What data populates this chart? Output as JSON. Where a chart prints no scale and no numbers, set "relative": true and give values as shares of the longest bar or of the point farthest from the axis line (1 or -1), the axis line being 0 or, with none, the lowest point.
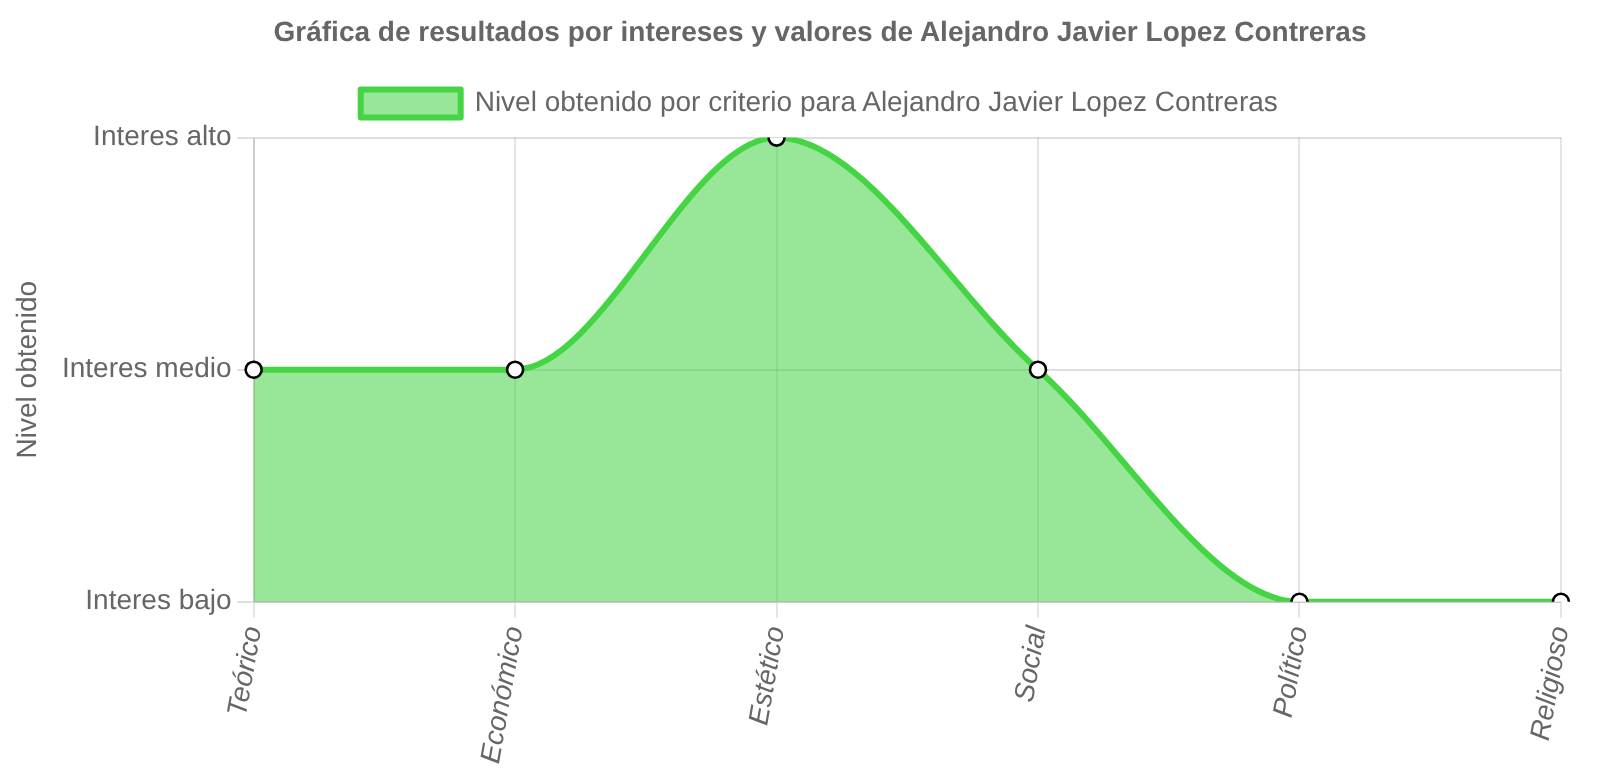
{
  "chart_data": {
    "type": "area",
    "title": "Gráfica de resultados por intereses y valores de Alejandro Javier Lopez Contreras",
    "categories": [
      "Teórico",
      "Económico",
      "Estético",
      "Social",
      "Político",
      "Religioso"
    ],
    "series": [
      {
        "name": "Nivel obtenido por criterio para Alejandro Javier Lopez Contreras",
        "color": "#44d444",
        "values": [
          0.5,
          0.5,
          1,
          0.5,
          0,
          0
        ]
      }
    ],
    "relative": true,
    "annotations": [
      "Nivel obtenido",
      "Interes bajo",
      "Interes medio",
      "Interes alto"
    ],
    "grid": true,
    "legend": "top",
    "marker": "circle",
    "line_style": "solid"
  }
}
